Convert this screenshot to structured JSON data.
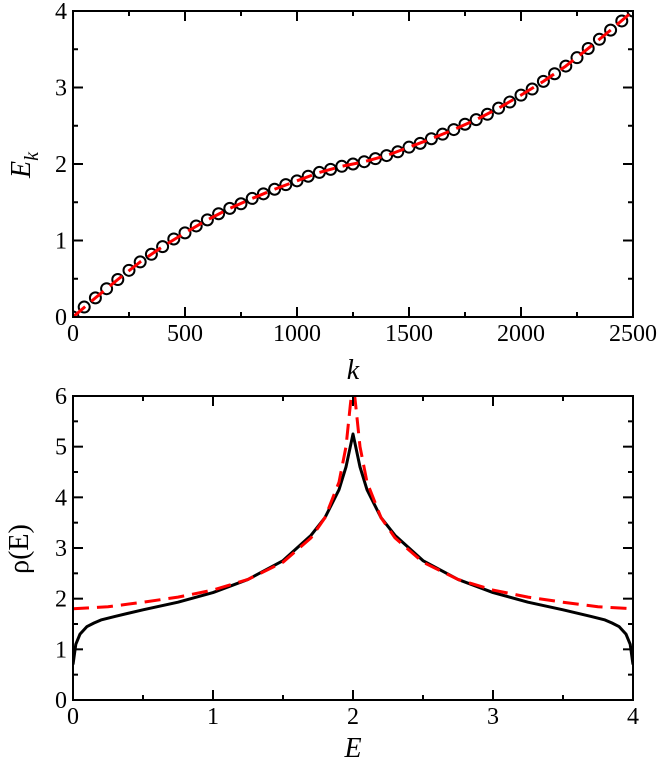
{
  "chart_data": [
    {
      "type": "scatter",
      "xlabel": "k",
      "ylabel_main": "E",
      "ylabel_sub": "k",
      "xlim": [
        0,
        2500
      ],
      "ylim": [
        0,
        4
      ],
      "xticks": [
        0,
        500,
        1000,
        1500,
        2000,
        2500
      ],
      "yticks": [
        0,
        1,
        2,
        3,
        4
      ],
      "x_minor_ticks": [
        250,
        750,
        1250,
        1750,
        2250
      ],
      "y_minor_ticks": [
        0.5,
        1.5,
        2.5,
        3.5
      ],
      "grid": false,
      "series": [
        {
          "style": "black open circles",
          "color": "#000000",
          "x": [
            0,
            50,
            100,
            150,
            200,
            250,
            300,
            350,
            400,
            450,
            500,
            550,
            600,
            650,
            700,
            750,
            800,
            850,
            900,
            950,
            1000,
            1050,
            1100,
            1150,
            1200,
            1250,
            1300,
            1350,
            1400,
            1450,
            1500,
            1550,
            1600,
            1650,
            1700,
            1750,
            1800,
            1850,
            1900,
            1950,
            2000,
            2050,
            2100,
            2150,
            2200,
            2250,
            2300,
            2350,
            2400,
            2450,
            2500
          ],
          "y": [
            0.0,
            0.13,
            0.25,
            0.37,
            0.49,
            0.61,
            0.72,
            0.82,
            0.92,
            1.02,
            1.1,
            1.19,
            1.27,
            1.35,
            1.42,
            1.48,
            1.55,
            1.61,
            1.67,
            1.73,
            1.78,
            1.84,
            1.89,
            1.93,
            1.97,
            2.0,
            2.03,
            2.07,
            2.11,
            2.16,
            2.22,
            2.27,
            2.33,
            2.39,
            2.45,
            2.52,
            2.58,
            2.65,
            2.73,
            2.81,
            2.9,
            2.98,
            3.08,
            3.18,
            3.28,
            3.39,
            3.51,
            3.63,
            3.75,
            3.87,
            4.0
          ]
        },
        {
          "style": "red dashed line",
          "color": "#ff0000",
          "x": [
            0,
            100,
            200,
            300,
            400,
            500,
            600,
            700,
            800,
            900,
            1000,
            1100,
            1200,
            1250,
            1300,
            1400,
            1500,
            1600,
            1700,
            1800,
            1900,
            2000,
            2100,
            2200,
            2300,
            2400,
            2500
          ],
          "y": [
            0.0,
            0.25,
            0.49,
            0.72,
            0.92,
            1.1,
            1.27,
            1.42,
            1.55,
            1.67,
            1.78,
            1.89,
            1.97,
            2.0,
            2.03,
            2.11,
            2.22,
            2.33,
            2.45,
            2.58,
            2.73,
            2.9,
            3.08,
            3.28,
            3.51,
            3.75,
            4.0
          ]
        }
      ]
    },
    {
      "type": "line",
      "xlabel": "E",
      "ylabel": "ρ(E)",
      "xlim": [
        0,
        4
      ],
      "ylim": [
        0,
        6
      ],
      "xticks": [
        0,
        1,
        2,
        3,
        4
      ],
      "yticks": [
        0,
        1,
        2,
        3,
        4,
        5,
        6
      ],
      "x_minor_ticks": [
        0.5,
        1.5,
        2.5,
        3.5
      ],
      "y_minor_ticks": [
        0.5,
        1.5,
        2.5,
        3.5,
        4.5,
        5.5
      ],
      "grid": false,
      "series": [
        {
          "style": "black solid line",
          "color": "#000000",
          "x": [
            0.0,
            0.02,
            0.05,
            0.1,
            0.15,
            0.2,
            0.3,
            0.5,
            0.75,
            1.0,
            1.25,
            1.5,
            1.7,
            1.8,
            1.9,
            1.95,
            2.0,
            2.05,
            2.1,
            2.2,
            2.3,
            2.5,
            2.75,
            3.0,
            3.25,
            3.5,
            3.7,
            3.8,
            3.85,
            3.9,
            3.95,
            3.98,
            4.0
          ],
          "y": [
            0.7,
            1.1,
            1.3,
            1.45,
            1.52,
            1.58,
            1.65,
            1.78,
            1.93,
            2.12,
            2.38,
            2.75,
            3.25,
            3.6,
            4.15,
            4.6,
            5.25,
            4.6,
            4.15,
            3.6,
            3.25,
            2.75,
            2.38,
            2.12,
            1.93,
            1.78,
            1.65,
            1.58,
            1.52,
            1.45,
            1.3,
            1.1,
            0.7
          ]
        },
        {
          "style": "red dashed line",
          "color": "#ff0000",
          "x": [
            0.0,
            0.25,
            0.5,
            0.75,
            1.0,
            1.25,
            1.5,
            1.7,
            1.8,
            1.9,
            1.95,
            1.98,
            2.0,
            2.02,
            2.05,
            2.1,
            2.2,
            2.3,
            2.5,
            2.75,
            3.0,
            3.25,
            3.5,
            3.75,
            4.0
          ],
          "y": [
            1.8,
            1.84,
            1.93,
            2.03,
            2.17,
            2.38,
            2.72,
            3.2,
            3.6,
            4.3,
            5.0,
            5.8,
            6.3,
            5.8,
            5.0,
            4.3,
            3.6,
            3.2,
            2.72,
            2.38,
            2.17,
            2.03,
            1.93,
            1.84,
            1.8
          ]
        }
      ]
    }
  ]
}
